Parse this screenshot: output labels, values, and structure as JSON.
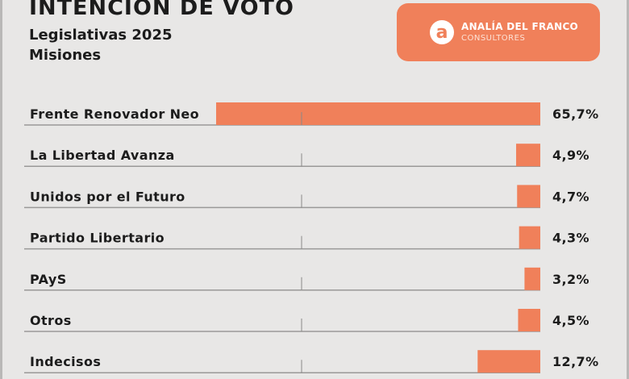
{
  "header": {
    "title": "INTENCIÓN DE VOTO",
    "subtitle_line1": "Legislativas 2025",
    "subtitle_line2": "Misiones"
  },
  "brand": {
    "name": "ANALÍA DEL FRANCO",
    "subtitle": "CONSULTORES",
    "logo_letter": "a",
    "color": "#f0805a"
  },
  "chart_data": {
    "type": "bar",
    "orientation": "horizontal",
    "categories": [
      "Frente Renovador Neo",
      "La Libertad Avanza",
      "Unidos por el Futuro",
      "Partido Libertario",
      "PAyS",
      "Otros",
      "Indecisos"
    ],
    "values": [
      65.7,
      4.9,
      4.7,
      4.3,
      3.2,
      4.5,
      12.7
    ],
    "value_labels": [
      "65,7%",
      "4,9%",
      "4,7%",
      "4,3%",
      "3,2%",
      "4,5%",
      "12,7%"
    ],
    "bar_color": "#f0805a",
    "xlim": [
      0,
      65.7
    ],
    "grid": false
  }
}
